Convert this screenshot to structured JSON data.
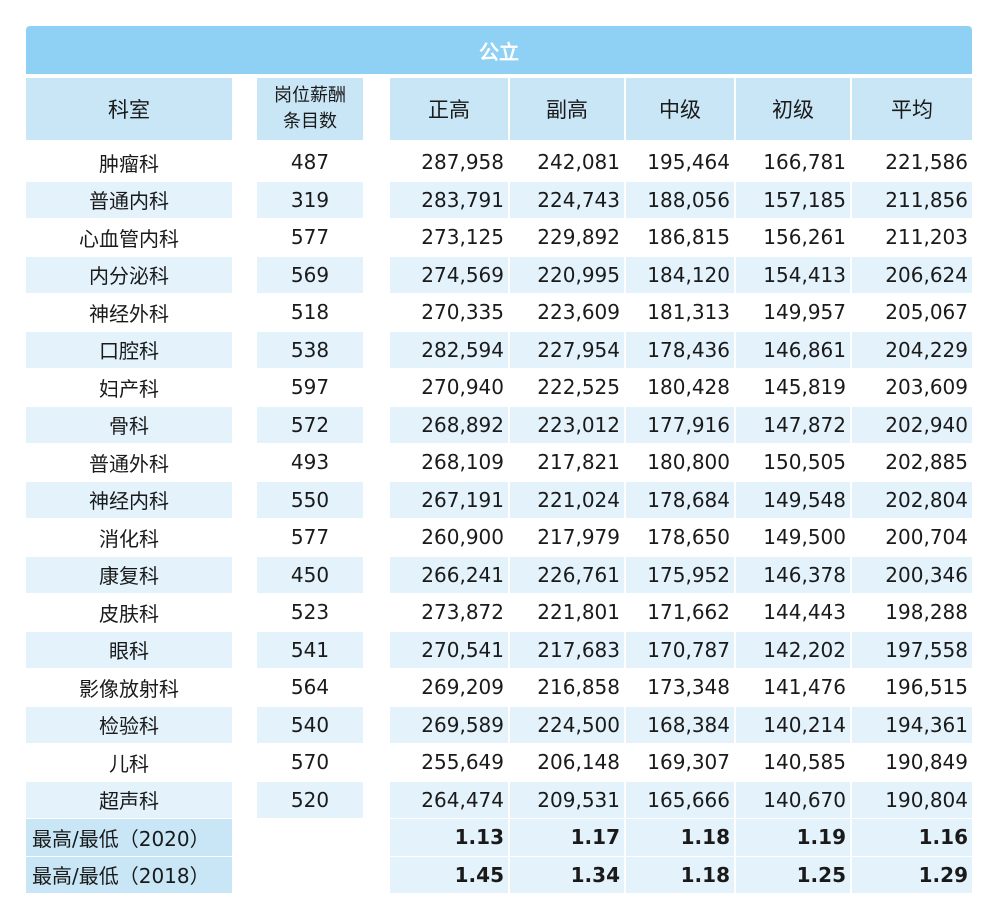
{
  "table": {
    "banner": "公立",
    "headers": {
      "department": "科室",
      "count_line1": "岗位薪酬",
      "count_line2": "条目数",
      "cols": [
        "正高",
        "副高",
        "中级",
        "初级",
        "平均"
      ]
    },
    "rows": [
      {
        "dept": "肿瘤科",
        "count": "487",
        "vals": [
          "287,958",
          "242,081",
          "195,464",
          "166,781",
          "221,586"
        ]
      },
      {
        "dept": "普通内科",
        "count": "319",
        "vals": [
          "283,791",
          "224,743",
          "188,056",
          "157,185",
          "211,856"
        ]
      },
      {
        "dept": "心血管内科",
        "count": "577",
        "vals": [
          "273,125",
          "229,892",
          "186,815",
          "156,261",
          "211,203"
        ]
      },
      {
        "dept": "内分泌科",
        "count": "569",
        "vals": [
          "274,569",
          "220,995",
          "184,120",
          "154,413",
          "206,624"
        ]
      },
      {
        "dept": "神经外科",
        "count": "518",
        "vals": [
          "270,335",
          "223,609",
          "181,313",
          "149,957",
          "205,067"
        ]
      },
      {
        "dept": "口腔科",
        "count": "538",
        "vals": [
          "282,594",
          "227,954",
          "178,436",
          "146,861",
          "204,229"
        ]
      },
      {
        "dept": "妇产科",
        "count": "597",
        "vals": [
          "270,940",
          "222,525",
          "180,428",
          "145,819",
          "203,609"
        ]
      },
      {
        "dept": "骨科",
        "count": "572",
        "vals": [
          "268,892",
          "223,012",
          "177,916",
          "147,872",
          "202,940"
        ]
      },
      {
        "dept": "普通外科",
        "count": "493",
        "vals": [
          "268,109",
          "217,821",
          "180,800",
          "150,505",
          "202,885"
        ]
      },
      {
        "dept": "神经内科",
        "count": "550",
        "vals": [
          "267,191",
          "221,024",
          "178,684",
          "149,548",
          "202,804"
        ]
      },
      {
        "dept": "消化科",
        "count": "577",
        "vals": [
          "260,900",
          "217,979",
          "178,650",
          "149,500",
          "200,704"
        ]
      },
      {
        "dept": "康复科",
        "count": "450",
        "vals": [
          "266,241",
          "226,761",
          "175,952",
          "146,378",
          "200,346"
        ]
      },
      {
        "dept": "皮肤科",
        "count": "523",
        "vals": [
          "273,872",
          "221,801",
          "171,662",
          "144,443",
          "198,288"
        ]
      },
      {
        "dept": "眼科",
        "count": "541",
        "vals": [
          "270,541",
          "217,683",
          "170,787",
          "142,202",
          "197,558"
        ]
      },
      {
        "dept": "影像放射科",
        "count": "564",
        "vals": [
          "269,209",
          "216,858",
          "173,348",
          "141,476",
          "196,515"
        ]
      },
      {
        "dept": "检验科",
        "count": "540",
        "vals": [
          "269,589",
          "224,500",
          "168,384",
          "140,214",
          "194,361"
        ]
      },
      {
        "dept": "儿科",
        "count": "570",
        "vals": [
          "255,649",
          "206,148",
          "169,307",
          "140,585",
          "190,849"
        ]
      },
      {
        "dept": "超声科",
        "count": "520",
        "vals": [
          "264,474",
          "209,531",
          "165,666",
          "140,670",
          "190,804"
        ]
      }
    ],
    "summary": [
      {
        "label": "最高/最低（2020）",
        "vals": [
          "1.13",
          "1.17",
          "1.18",
          "1.19",
          "1.16"
        ]
      },
      {
        "label": "最高/最低（2018）",
        "vals": [
          "1.45",
          "1.34",
          "1.18",
          "1.25",
          "1.29"
        ]
      }
    ],
    "colors": {
      "banner": "#8fd0f5",
      "header": "#c9e6f6",
      "stripe": "#e3f2fb"
    }
  }
}
